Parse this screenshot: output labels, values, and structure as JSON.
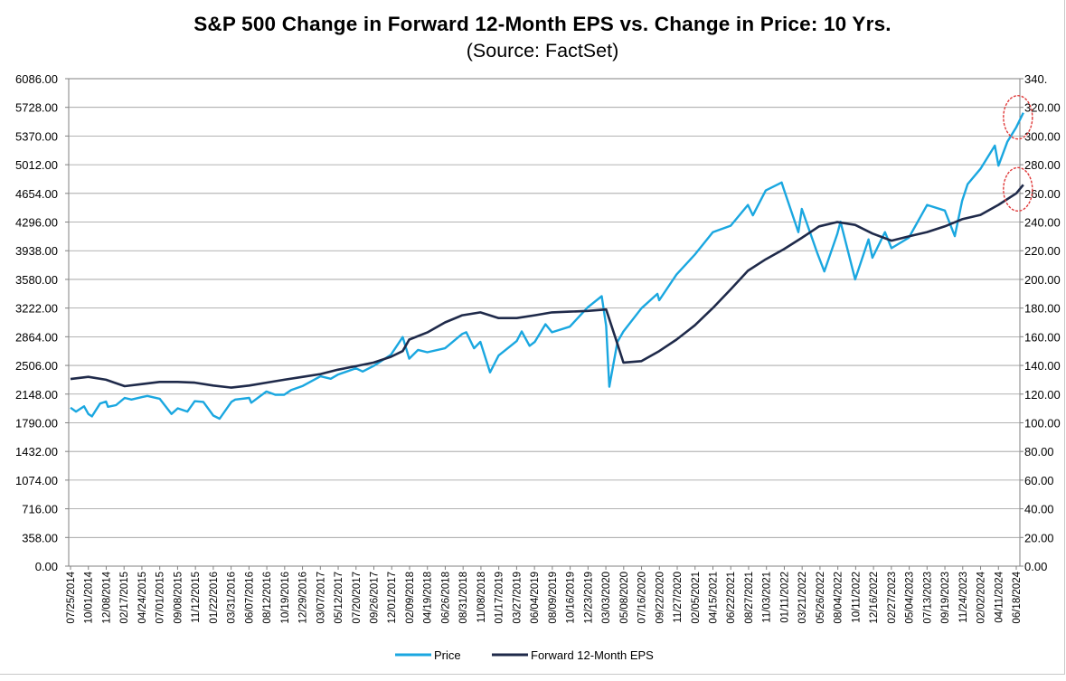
{
  "chart_data": {
    "type": "line",
    "title": "S&P 500 Change in Forward 12-Month EPS vs. Change in Price: 10 Yrs.",
    "subtitle": "(Source: FactSet)",
    "y_left": {
      "range": [
        0,
        6086
      ],
      "ticks": [
        "0.00",
        "358.00",
        "716.00",
        "1074.00",
        "1432.00",
        "1790.00",
        "2148.00",
        "2506.00",
        "2864.00",
        "3222.00",
        "3580.00",
        "3938.00",
        "4296.00",
        "4654.00",
        "5012.00",
        "5370.00",
        "5728.00",
        "6086.00"
      ]
    },
    "y_right": {
      "range": [
        0,
        340
      ],
      "ticks": [
        "0.00",
        "20.00",
        "40.00",
        "60.00",
        "80.00",
        "100.00",
        "120.00",
        "140.00",
        "160.00",
        "180.00",
        "200.00",
        "220.00",
        "240.00",
        "260.00",
        "280.00",
        "300.00",
        "320.00",
        "340."
      ]
    },
    "x_ticks": [
      "07/25/2014",
      "10/01/2014",
      "12/08/2014",
      "02/17/2015",
      "04/24/2015",
      "07/01/2015",
      "09/08/2015",
      "11/12/2015",
      "01/22/2016",
      "03/31/2016",
      "06/07/2016",
      "08/12/2016",
      "10/19/2016",
      "12/29/2016",
      "03/07/2017",
      "05/12/2017",
      "07/20/2017",
      "09/26/2017",
      "12/01/2017",
      "02/09/2018",
      "04/19/2018",
      "06/26/2018",
      "08/31/2018",
      "11/08/2018",
      "01/17/2019",
      "03/27/2019",
      "06/04/2019",
      "08/09/2019",
      "10/16/2019",
      "12/23/2019",
      "03/03/2020",
      "05/08/2020",
      "07/16/2020",
      "09/22/2020",
      "11/27/2020",
      "02/05/2021",
      "04/15/2021",
      "06/22/2021",
      "08/27/2021",
      "11/03/2021",
      "01/11/2022",
      "03/21/2022",
      "05/26/2022",
      "08/04/2022",
      "10/11/2022",
      "12/16/2022",
      "02/27/2023",
      "05/04/2023",
      "07/13/2023",
      "09/19/2023",
      "11/24/2023",
      "02/02/2024",
      "04/11/2024",
      "06/18/2024"
    ],
    "series": [
      {
        "name": "Price",
        "axis": "left",
        "color": "#1aa7e0",
        "points": [
          [
            "07/25/2014",
            1978
          ],
          [
            "08/2014",
            1930
          ],
          [
            "09/2014",
            1995
          ],
          [
            "10/01/2014",
            1900
          ],
          [
            "10/2014",
            1870
          ],
          [
            "11/2014",
            2030
          ],
          [
            "12/08/2014",
            2055
          ],
          [
            "12/2014",
            1990
          ],
          [
            "01/2015",
            2010
          ],
          [
            "02/17/2015",
            2100
          ],
          [
            "03/2015",
            2080
          ],
          [
            "04/24/2015",
            2110
          ],
          [
            "05/2015",
            2125
          ],
          [
            "07/01/2015",
            2090
          ],
          [
            "08/2015",
            1900
          ],
          [
            "09/08/2015",
            1970
          ],
          [
            "10/2015",
            1930
          ],
          [
            "11/12/2015",
            2060
          ],
          [
            "12/2015",
            2050
          ],
          [
            "01/22/2016",
            1880
          ],
          [
            "02/2016",
            1840
          ],
          [
            "03/31/2016",
            2050
          ],
          [
            "04/2016",
            2080
          ],
          [
            "06/07/2016",
            2100
          ],
          [
            "06/2016",
            2040
          ],
          [
            "08/12/2016",
            2180
          ],
          [
            "09/2016",
            2140
          ],
          [
            "10/19/2016",
            2140
          ],
          [
            "11/2016",
            2200
          ],
          [
            "12/29/2016",
            2250
          ],
          [
            "03/07/2017",
            2370
          ],
          [
            "04/2017",
            2340
          ],
          [
            "05/12/2017",
            2390
          ],
          [
            "07/20/2017",
            2470
          ],
          [
            "08/2017",
            2430
          ],
          [
            "09/26/2017",
            2500
          ],
          [
            "12/01/2017",
            2640
          ],
          [
            "01/2018",
            2860
          ],
          [
            "02/09/2018",
            2590
          ],
          [
            "03/2018",
            2700
          ],
          [
            "04/19/2018",
            2670
          ],
          [
            "06/26/2018",
            2720
          ],
          [
            "08/31/2018",
            2900
          ],
          [
            "09/2018",
            2920
          ],
          [
            "10/2018",
            2720
          ],
          [
            "11/08/2018",
            2800
          ],
          [
            "12/2018",
            2420
          ],
          [
            "01/17/2019",
            2630
          ],
          [
            "03/27/2019",
            2810
          ],
          [
            "04/2019",
            2930
          ],
          [
            "05/2019",
            2750
          ],
          [
            "06/04/2019",
            2800
          ],
          [
            "07/2019",
            3020
          ],
          [
            "08/09/2019",
            2920
          ],
          [
            "10/16/2019",
            2990
          ],
          [
            "12/23/2019",
            3230
          ],
          [
            "02/2020",
            3370
          ],
          [
            "03/03/2020",
            3000
          ],
          [
            "03/2020",
            2240
          ],
          [
            "04/2020",
            2800
          ],
          [
            "05/08/2020",
            2930
          ],
          [
            "07/16/2020",
            3220
          ],
          [
            "09/2020",
            3400
          ],
          [
            "09/22/2020",
            3320
          ],
          [
            "11/27/2020",
            3640
          ],
          [
            "02/05/2021",
            3890
          ],
          [
            "04/15/2021",
            4170
          ],
          [
            "06/22/2021",
            4250
          ],
          [
            "08/27/2021",
            4510
          ],
          [
            "09/2021",
            4380
          ],
          [
            "11/03/2021",
            4690
          ],
          [
            "01/03/2022",
            4790
          ],
          [
            "01/11/2022",
            4710
          ],
          [
            "03/08/2022",
            4170
          ],
          [
            "03/21/2022",
            4460
          ],
          [
            "05/20/2022",
            3900
          ],
          [
            "06/2022",
            3680
          ],
          [
            "08/04/2022",
            4150
          ],
          [
            "08/16/2022",
            4300
          ],
          [
            "10/11/2022",
            3580
          ],
          [
            "12/01/2022",
            4080
          ],
          [
            "12/16/2022",
            3850
          ],
          [
            "02/02/2023",
            4170
          ],
          [
            "02/27/2023",
            3970
          ],
          [
            "05/04/2023",
            4100
          ],
          [
            "07/13/2023",
            4510
          ],
          [
            "09/19/2023",
            4440
          ],
          [
            "10/27/2023",
            4120
          ],
          [
            "11/24/2023",
            4560
          ],
          [
            "12/2023",
            4770
          ],
          [
            "02/02/2024",
            4960
          ],
          [
            "03/28/2024",
            5250
          ],
          [
            "04/11/2024",
            5000
          ],
          [
            "05/2024",
            5300
          ],
          [
            "06/18/2024",
            5480
          ],
          [
            "07/2024",
            5660
          ]
        ]
      },
      {
        "name": "Forward 12-Month EPS",
        "axis": "right",
        "color": "#1f2a4a",
        "points": [
          [
            "07/25/2014",
            130.5
          ],
          [
            "10/01/2014",
            132
          ],
          [
            "12/08/2014",
            130
          ],
          [
            "02/17/2015",
            125.5
          ],
          [
            "04/24/2015",
            127
          ],
          [
            "07/01/2015",
            128.5
          ],
          [
            "09/08/2015",
            128.5
          ],
          [
            "11/12/2015",
            128
          ],
          [
            "01/22/2016",
            126
          ],
          [
            "03/31/2016",
            124.5
          ],
          [
            "06/07/2016",
            126
          ],
          [
            "08/12/2016",
            128
          ],
          [
            "10/19/2016",
            130
          ],
          [
            "12/29/2016",
            132
          ],
          [
            "03/07/2017",
            134
          ],
          [
            "05/12/2017",
            137
          ],
          [
            "07/20/2017",
            139.5
          ],
          [
            "09/26/2017",
            142
          ],
          [
            "12/01/2017",
            146
          ],
          [
            "01/2018",
            150
          ],
          [
            "02/09/2018",
            158
          ],
          [
            "04/19/2018",
            163
          ],
          [
            "06/26/2018",
            170
          ],
          [
            "08/31/2018",
            175
          ],
          [
            "11/08/2018",
            177
          ],
          [
            "01/17/2019",
            173
          ],
          [
            "03/27/2019",
            173
          ],
          [
            "06/04/2019",
            175
          ],
          [
            "08/09/2019",
            177
          ],
          [
            "10/16/2019",
            177.5
          ],
          [
            "12/23/2019",
            178
          ],
          [
            "03/03/2020",
            179
          ],
          [
            "04/2020",
            155
          ],
          [
            "05/08/2020",
            142
          ],
          [
            "07/16/2020",
            143
          ],
          [
            "09/22/2020",
            150
          ],
          [
            "11/27/2020",
            158
          ],
          [
            "02/05/2021",
            168
          ],
          [
            "04/15/2021",
            180
          ],
          [
            "06/22/2021",
            193
          ],
          [
            "08/27/2021",
            206
          ],
          [
            "11/03/2021",
            214
          ],
          [
            "01/11/2022",
            221
          ],
          [
            "03/21/2022",
            229
          ],
          [
            "05/26/2022",
            237
          ],
          [
            "08/04/2022",
            240
          ],
          [
            "10/11/2022",
            238
          ],
          [
            "12/16/2022",
            232
          ],
          [
            "02/27/2023",
            227
          ],
          [
            "05/04/2023",
            230
          ],
          [
            "07/13/2023",
            233
          ],
          [
            "09/19/2023",
            237
          ],
          [
            "11/24/2023",
            242
          ],
          [
            "02/02/2024",
            245
          ],
          [
            "04/11/2024",
            252
          ],
          [
            "06/18/2024",
            260
          ],
          [
            "07/2024",
            266
          ]
        ]
      }
    ],
    "annotations": [
      "red circle around latest Price value",
      "red circle around latest Forward 12-Month EPS value"
    ],
    "legend": {
      "position": "bottom",
      "entries": [
        "Price",
        "Forward 12-Month EPS"
      ]
    },
    "grid": "horizontal"
  }
}
